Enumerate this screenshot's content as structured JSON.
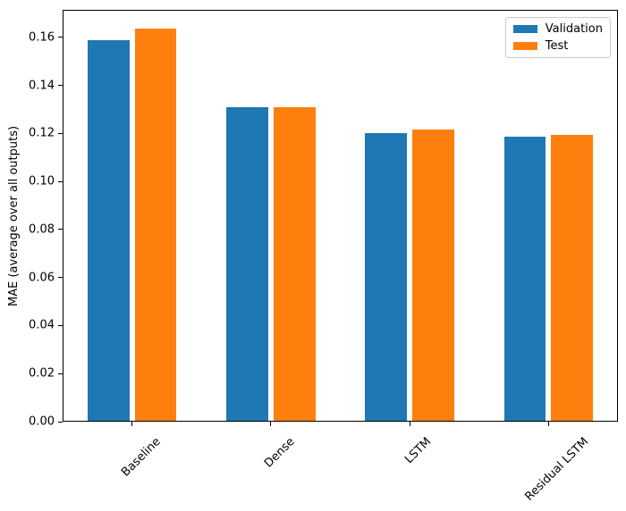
{
  "chart_data": {
    "type": "bar",
    "title": "",
    "categories": [
      "Baseline",
      "Dense",
      "LSTM",
      "Residual LSTM"
    ],
    "series": [
      {
        "name": "Validation",
        "color": "#1f77b4",
        "values": [
          0.159,
          0.131,
          0.1202,
          0.1185
        ]
      },
      {
        "name": "Test",
        "color": "#ff7f0e",
        "values": [
          0.1638,
          0.131,
          0.1217,
          0.1196
        ]
      }
    ],
    "xlabel": "",
    "ylabel": "MAE (average over all outputs)",
    "xlim": [
      -0.5,
      3.5
    ],
    "ylim": [
      0,
      0.1715
    ],
    "yticks": [
      0,
      0.02,
      0.04,
      0.06,
      0.08,
      0.1,
      0.12,
      0.14,
      0.16
    ],
    "ytick_labels": [
      "0.00",
      "0.02",
      "0.04",
      "0.06",
      "0.08",
      "0.10",
      "0.12",
      "0.14",
      "0.16"
    ],
    "xtick_rotation_deg": 45,
    "bar_width": 0.3,
    "bar_offsets": [
      -0.17,
      0.17
    ],
    "grid": false,
    "legend": {
      "location": "upper right",
      "entries": [
        "Validation",
        "Test"
      ]
    },
    "colors": {
      "background": "#ffffff",
      "axis": "#000000",
      "text": "#000000",
      "legend_border": "#cccccc"
    }
  }
}
